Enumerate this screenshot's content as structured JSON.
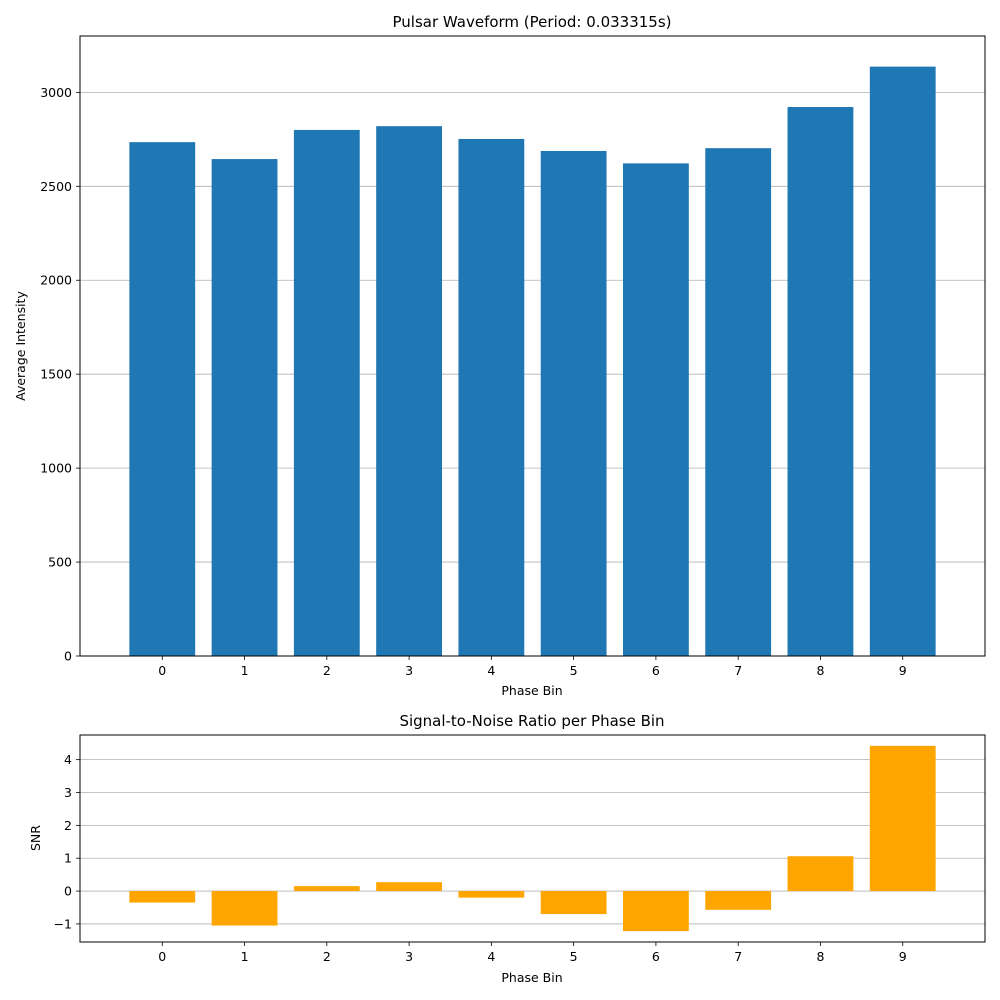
{
  "chart_data": [
    {
      "type": "bar",
      "title": "Pulsar Waveform (Period: 0.033315s)",
      "xlabel": "Phase Bin",
      "ylabel": "Average Intensity",
      "categories": [
        "0",
        "1",
        "2",
        "3",
        "4",
        "5",
        "6",
        "7",
        "8",
        "9"
      ],
      "values": [
        2735,
        2645,
        2800,
        2820,
        2752,
        2688,
        2622,
        2703,
        2922,
        3137
      ],
      "ylim": [
        0,
        3300
      ],
      "yticks": [
        0,
        500,
        1000,
        1500,
        2000,
        2500,
        3000
      ],
      "ytick_labels": [
        "0",
        "500",
        "1000",
        "1500",
        "2000",
        "2500",
        "3000"
      ],
      "grid": "y",
      "color": "#1f77b4"
    },
    {
      "type": "bar",
      "title": "Signal-to-Noise Ratio per Phase Bin",
      "xlabel": "Phase Bin",
      "ylabel": "SNR",
      "categories": [
        "0",
        "1",
        "2",
        "3",
        "4",
        "5",
        "6",
        "7",
        "8",
        "9"
      ],
      "values": [
        -0.35,
        -1.05,
        0.15,
        0.27,
        -0.2,
        -0.7,
        -1.22,
        -0.57,
        1.06,
        4.42
      ],
      "ylim": [
        -1.55,
        4.75
      ],
      "yticks": [
        -1,
        0,
        1,
        2,
        3,
        4
      ],
      "ytick_labels": [
        "−1",
        "0",
        "1",
        "2",
        "3",
        "4"
      ],
      "grid": "y",
      "color": "#ffa500"
    }
  ]
}
